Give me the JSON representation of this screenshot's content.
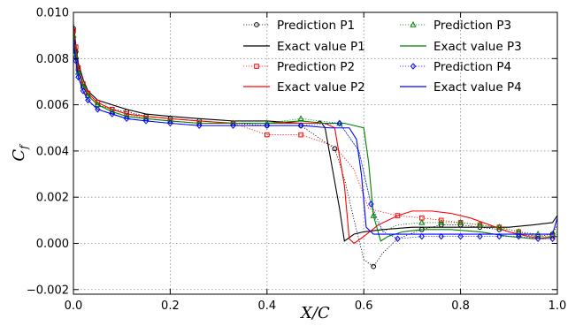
{
  "chart_data": {
    "type": "line",
    "xlabel": "X/C",
    "ylabel": "C",
    "ylabel_sub": "f",
    "xlim": [
      0.0,
      1.0
    ],
    "ylim": [
      -0.0022,
      0.01
    ],
    "xticks": [
      0.0,
      0.2,
      0.4,
      0.6,
      0.8,
      1.0
    ],
    "xtick_labels": [
      "0.0",
      "0.2",
      "0.4",
      "0.6",
      "0.8",
      "1.0"
    ],
    "yticks": [
      -0.002,
      0.0,
      0.002,
      0.004,
      0.006,
      0.008,
      0.01
    ],
    "ytick_labels": [
      "−0.002",
      "0.000",
      "0.002",
      "0.004",
      "0.006",
      "0.008",
      "0.010"
    ],
    "grid": true,
    "legend_position": "top-right",
    "series": [
      {
        "name": "Prediction P1",
        "kind": "prediction",
        "marker": "circle",
        "color": "#000000",
        "x": [
          0.0,
          0.005,
          0.01,
          0.02,
          0.03,
          0.05,
          0.08,
          0.11,
          0.15,
          0.2,
          0.26,
          0.33,
          0.4,
          0.47,
          0.54,
          0.56,
          0.58,
          0.6,
          0.62,
          0.64,
          0.67,
          0.72,
          0.76,
          0.8,
          0.84,
          0.88,
          0.92,
          0.96,
          0.99,
          1.0
        ],
        "y": [
          0.0093,
          0.0083,
          0.0075,
          0.0068,
          0.0064,
          0.006,
          0.0058,
          0.0057,
          0.0055,
          0.0054,
          0.0053,
          0.0052,
          0.0051,
          0.0051,
          0.0041,
          0.0028,
          0.001,
          -0.0007,
          -0.001,
          -0.0004,
          0.0002,
          0.0006,
          0.0008,
          0.0008,
          0.0007,
          0.0006,
          0.0004,
          0.0003,
          0.0004,
          0.0008
        ],
        "markers_x": [
          0.0,
          0.005,
          0.01,
          0.02,
          0.03,
          0.05,
          0.08,
          0.11,
          0.15,
          0.2,
          0.26,
          0.33,
          0.4,
          0.47,
          0.54,
          0.62,
          0.72,
          0.76,
          0.8,
          0.84,
          0.88,
          0.92,
          0.96,
          0.99
        ],
        "markers_y": [
          0.0093,
          0.0083,
          0.0075,
          0.0068,
          0.0064,
          0.006,
          0.0058,
          0.0057,
          0.0055,
          0.0054,
          0.0053,
          0.0052,
          0.0051,
          0.0051,
          0.0041,
          -0.001,
          0.0006,
          0.0008,
          0.0008,
          0.0007,
          0.0006,
          0.0004,
          0.0003,
          0.0004
        ]
      },
      {
        "name": "Exact value P1",
        "kind": "exact",
        "color": "#000000",
        "x": [
          0.0,
          0.005,
          0.01,
          0.02,
          0.03,
          0.05,
          0.08,
          0.11,
          0.15,
          0.2,
          0.26,
          0.33,
          0.4,
          0.47,
          0.5,
          0.51,
          0.52,
          0.55,
          0.56,
          0.58,
          0.6,
          0.64,
          0.7,
          0.8,
          0.9,
          0.95,
          0.99,
          1.0
        ],
        "y": [
          0.0095,
          0.0086,
          0.0078,
          0.0071,
          0.0066,
          0.0062,
          0.006,
          0.0058,
          0.0056,
          0.0055,
          0.0054,
          0.0053,
          0.0053,
          0.0052,
          0.0052,
          0.0053,
          0.005,
          0.0015,
          0.0001,
          0.0004,
          0.0005,
          0.0006,
          0.0007,
          0.0007,
          0.0007,
          0.0008,
          0.0009,
          0.0012
        ]
      },
      {
        "name": "Prediction P2",
        "kind": "prediction",
        "marker": "square",
        "color": "#ff0000",
        "x": [
          0.0,
          0.005,
          0.01,
          0.02,
          0.03,
          0.05,
          0.08,
          0.11,
          0.15,
          0.2,
          0.26,
          0.33,
          0.4,
          0.47,
          0.54,
          0.58,
          0.61,
          0.67,
          0.72,
          0.76,
          0.8,
          0.84,
          0.88,
          0.92,
          0.96,
          0.99,
          1.0
        ],
        "y": [
          0.0092,
          0.0085,
          0.0076,
          0.0069,
          0.0065,
          0.0061,
          0.0058,
          0.0056,
          0.0054,
          0.0053,
          0.0052,
          0.0052,
          0.0047,
          0.0047,
          0.0042,
          0.0032,
          0.0015,
          0.0012,
          0.0011,
          0.001,
          0.0009,
          0.0008,
          0.0007,
          0.0005,
          0.0003,
          0.0003,
          0.0005
        ],
        "markers_x": [
          0.0,
          0.005,
          0.01,
          0.02,
          0.03,
          0.05,
          0.08,
          0.11,
          0.15,
          0.2,
          0.26,
          0.33,
          0.4,
          0.47,
          0.67,
          0.72,
          0.76,
          0.8,
          0.84,
          0.88,
          0.92,
          0.96,
          0.99
        ],
        "markers_y": [
          0.0092,
          0.0085,
          0.0076,
          0.0069,
          0.0065,
          0.0061,
          0.0058,
          0.0056,
          0.0054,
          0.0053,
          0.0052,
          0.0052,
          0.0047,
          0.0047,
          0.0012,
          0.0011,
          0.001,
          0.0009,
          0.0008,
          0.0007,
          0.0005,
          0.0003,
          0.0003
        ]
      },
      {
        "name": "Exact value P2",
        "kind": "exact",
        "color": "#ff0000",
        "x": [
          0.0,
          0.005,
          0.01,
          0.02,
          0.03,
          0.05,
          0.08,
          0.11,
          0.15,
          0.2,
          0.26,
          0.33,
          0.4,
          0.47,
          0.52,
          0.54,
          0.56,
          0.57,
          0.58,
          0.6,
          0.63,
          0.67,
          0.7,
          0.74,
          0.78,
          0.82,
          0.86,
          0.9,
          0.94,
          0.97,
          1.0
        ],
        "y": [
          0.0093,
          0.0084,
          0.0076,
          0.0069,
          0.0065,
          0.0061,
          0.0058,
          0.0056,
          0.0055,
          0.0054,
          0.0053,
          0.0052,
          0.0052,
          0.0052,
          0.0052,
          0.005,
          0.0025,
          0.0002,
          0.0,
          0.0003,
          0.0008,
          0.0012,
          0.0014,
          0.0014,
          0.0013,
          0.0011,
          0.0008,
          0.0005,
          0.0003,
          0.0002,
          0.0003
        ]
      },
      {
        "name": "Prediction P3",
        "kind": "prediction",
        "marker": "triangle",
        "color": "#008000",
        "x": [
          0.0,
          0.005,
          0.01,
          0.02,
          0.03,
          0.05,
          0.08,
          0.11,
          0.15,
          0.2,
          0.26,
          0.33,
          0.4,
          0.47,
          0.55,
          0.59,
          0.62,
          0.64,
          0.67,
          0.72,
          0.76,
          0.8,
          0.84,
          0.88,
          0.92,
          0.96,
          0.99,
          1.0
        ],
        "y": [
          0.009,
          0.0081,
          0.0074,
          0.0068,
          0.0064,
          0.006,
          0.0057,
          0.0055,
          0.0054,
          0.0053,
          0.0052,
          0.0052,
          0.0052,
          0.0054,
          0.0052,
          0.004,
          0.0012,
          0.0005,
          0.0008,
          0.0009,
          0.0009,
          0.0009,
          0.0008,
          0.0007,
          0.0005,
          0.0004,
          0.0004,
          0.0005
        ],
        "markers_x": [
          0.0,
          0.005,
          0.01,
          0.02,
          0.03,
          0.05,
          0.08,
          0.11,
          0.15,
          0.2,
          0.26,
          0.33,
          0.4,
          0.47,
          0.55,
          0.62,
          0.72,
          0.76,
          0.8,
          0.84,
          0.88,
          0.92,
          0.96,
          0.99
        ],
        "markers_y": [
          0.009,
          0.0081,
          0.0074,
          0.0068,
          0.0064,
          0.006,
          0.0057,
          0.0055,
          0.0054,
          0.0053,
          0.0052,
          0.0052,
          0.0052,
          0.0054,
          0.0052,
          0.0012,
          0.0009,
          0.0009,
          0.0009,
          0.0008,
          0.0007,
          0.0005,
          0.0004,
          0.0004
        ]
      },
      {
        "name": "Exact value P3",
        "kind": "exact",
        "color": "#008000",
        "x": [
          0.0,
          0.005,
          0.01,
          0.02,
          0.03,
          0.05,
          0.08,
          0.11,
          0.15,
          0.2,
          0.26,
          0.33,
          0.4,
          0.47,
          0.52,
          0.56,
          0.6,
          0.61,
          0.62,
          0.635,
          0.65,
          0.68,
          0.72,
          0.78,
          0.84,
          0.9,
          0.95,
          1.0
        ],
        "y": [
          0.009,
          0.0081,
          0.0074,
          0.0068,
          0.0064,
          0.006,
          0.0057,
          0.0055,
          0.0054,
          0.0053,
          0.0052,
          0.0052,
          0.0052,
          0.0053,
          0.0052,
          0.0052,
          0.005,
          0.0035,
          0.0012,
          0.0001,
          0.0003,
          0.0005,
          0.0006,
          0.0006,
          0.0005,
          0.0003,
          0.0002,
          0.0003
        ]
      },
      {
        "name": "Prediction P4",
        "kind": "prediction",
        "marker": "diamond",
        "color": "#0000ff",
        "x": [
          0.0,
          0.005,
          0.01,
          0.02,
          0.03,
          0.05,
          0.08,
          0.11,
          0.15,
          0.2,
          0.26,
          0.33,
          0.4,
          0.47,
          0.55,
          0.59,
          0.615,
          0.64,
          0.67,
          0.72,
          0.76,
          0.8,
          0.84,
          0.88,
          0.92,
          0.96,
          0.99,
          1.0
        ],
        "y": [
          0.0087,
          0.0079,
          0.0072,
          0.0066,
          0.0062,
          0.0058,
          0.0056,
          0.0054,
          0.0053,
          0.0052,
          0.0051,
          0.0051,
          0.0051,
          0.0051,
          0.0052,
          0.004,
          0.0017,
          0.0005,
          0.0002,
          0.0003,
          0.0003,
          0.0003,
          0.0003,
          0.0003,
          0.0003,
          0.0002,
          0.0002,
          0.0004
        ],
        "markers_x": [
          0.0,
          0.005,
          0.01,
          0.02,
          0.03,
          0.05,
          0.08,
          0.11,
          0.15,
          0.2,
          0.26,
          0.33,
          0.4,
          0.47,
          0.55,
          0.615,
          0.67,
          0.72,
          0.76,
          0.8,
          0.84,
          0.88,
          0.92,
          0.96,
          0.99
        ],
        "markers_y": [
          0.0087,
          0.0079,
          0.0072,
          0.0066,
          0.0062,
          0.0058,
          0.0056,
          0.0054,
          0.0053,
          0.0052,
          0.0051,
          0.0051,
          0.0051,
          0.0051,
          0.0052,
          0.0017,
          0.0002,
          0.0003,
          0.0003,
          0.0003,
          0.0003,
          0.0003,
          0.0003,
          0.0002,
          0.0002
        ]
      },
      {
        "name": "Exact value P4",
        "kind": "exact",
        "color": "#0000ff",
        "x": [
          0.0,
          0.005,
          0.01,
          0.02,
          0.03,
          0.05,
          0.08,
          0.11,
          0.15,
          0.2,
          0.26,
          0.33,
          0.4,
          0.47,
          0.53,
          0.57,
          0.585,
          0.595,
          0.605,
          0.62,
          0.66,
          0.72,
          0.8,
          0.88,
          0.95,
          0.99,
          1.0
        ],
        "y": [
          0.0087,
          0.0079,
          0.0072,
          0.0066,
          0.0062,
          0.0058,
          0.0056,
          0.0054,
          0.0053,
          0.0052,
          0.0051,
          0.0051,
          0.0051,
          0.0051,
          0.005,
          0.005,
          0.0045,
          0.003,
          0.0007,
          0.0004,
          0.0004,
          0.0004,
          0.0004,
          0.0004,
          0.0004,
          0.0004,
          0.0011
        ]
      }
    ]
  }
}
